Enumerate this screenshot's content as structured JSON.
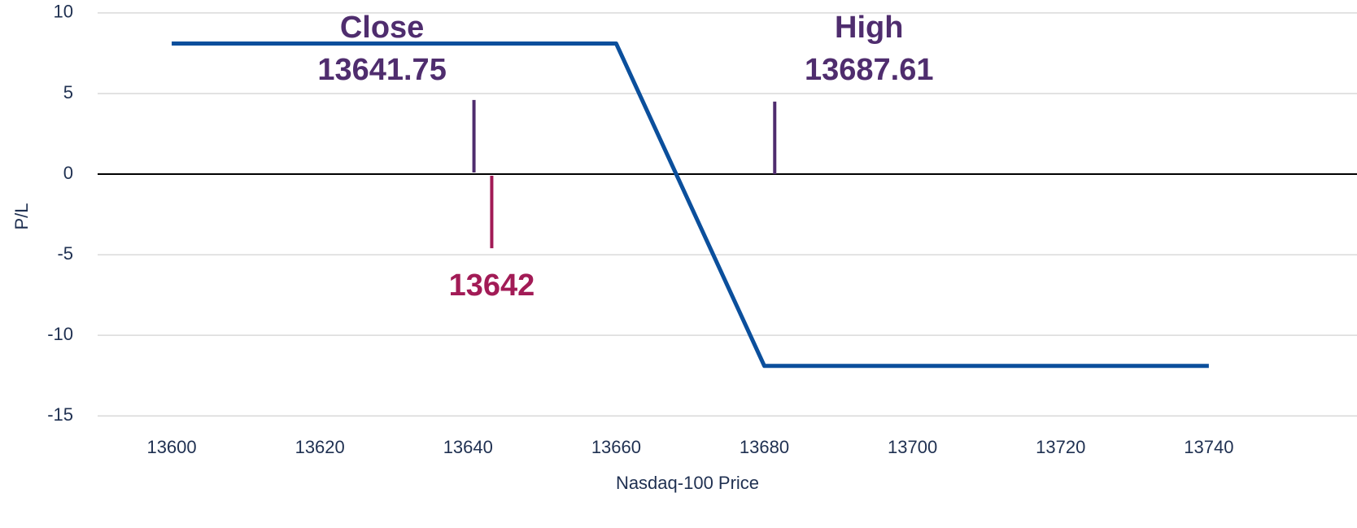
{
  "chart_data": {
    "type": "line",
    "x_label": "Nasdaq-100 Price",
    "y_label": "P/L",
    "x": [
      13600,
      13660,
      13680,
      13740
    ],
    "series": [
      {
        "color": "#0b4f9c",
        "values": [
          8.1,
          8.1,
          -11.9,
          -11.9
        ]
      }
    ],
    "xlim": [
      13590,
      13760
    ],
    "xticks": [
      13600,
      13620,
      13640,
      13660,
      13680,
      13700,
      13720,
      13740
    ],
    "ylim": [
      -16,
      10.5
    ],
    "yticks": [
      -15,
      -10,
      -5,
      0,
      5,
      10
    ],
    "grid": true,
    "annotations": [
      {
        "lines": [
          "Close",
          "13641.75"
        ],
        "x": 13640.8,
        "y": [
          0.1,
          4.6
        ],
        "color": "#4f2d6e"
      },
      {
        "lines": [
          "13642"
        ],
        "x": 13643.2,
        "y": [
          -0.1,
          -4.6
        ],
        "color": "#a21b56"
      },
      {
        "lines": [
          "High",
          "13687.61"
        ],
        "x": 13681.4,
        "y": [
          0,
          4.5
        ],
        "color": "#4f2d6e"
      }
    ]
  }
}
